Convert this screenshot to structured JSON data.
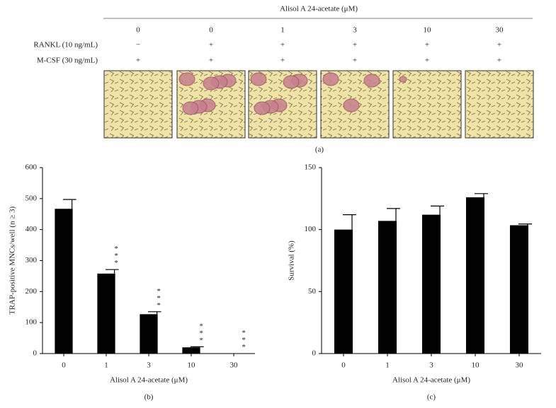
{
  "panel_a": {
    "title": "Alisol A 24-acetate (μM)",
    "doses": [
      "0",
      "0",
      "1",
      "3",
      "10",
      "30"
    ],
    "rows": [
      {
        "label": "RANKL (10 ng/mL)",
        "cells": [
          "−",
          "+",
          "+",
          "+",
          "+",
          "+"
        ]
      },
      {
        "label": "M-CSF (30 ng/mL)",
        "cells": [
          "+",
          "+",
          "+",
          "+",
          "+",
          "+"
        ]
      }
    ],
    "caption": "(a)"
  },
  "chart_data": [
    {
      "type": "bar",
      "caption": "(b)",
      "x_label": "Alisol A 24-acetate (μM)",
      "y_label": "TRAP-positive MNCs/well (n ≥ 3)",
      "categories": [
        "0",
        "1",
        "3",
        "10",
        "30"
      ],
      "values": [
        467,
        258,
        127,
        20,
        0
      ],
      "errors": [
        30,
        13,
        8,
        2,
        0
      ],
      "value_annotations": [
        null,
        "***",
        "***",
        "***",
        "***"
      ],
      "color": "#000000",
      "ylim": [
        0,
        600
      ],
      "yticks": [
        0,
        100,
        200,
        300,
        400,
        500,
        600
      ]
    },
    {
      "type": "bar",
      "caption": "(c)",
      "x_label": "Alisol A 24-acetate (μM)",
      "y_label": "Survival (%)",
      "categories": [
        "0",
        "1",
        "3",
        "10",
        "30"
      ],
      "values": [
        100,
        107,
        112,
        126,
        103.5
      ],
      "errors": [
        12,
        10,
        7,
        3,
        1
      ],
      "color": "#000000",
      "ylim": [
        0,
        150
      ],
      "yticks": [
        0,
        50,
        100,
        150
      ]
    }
  ]
}
